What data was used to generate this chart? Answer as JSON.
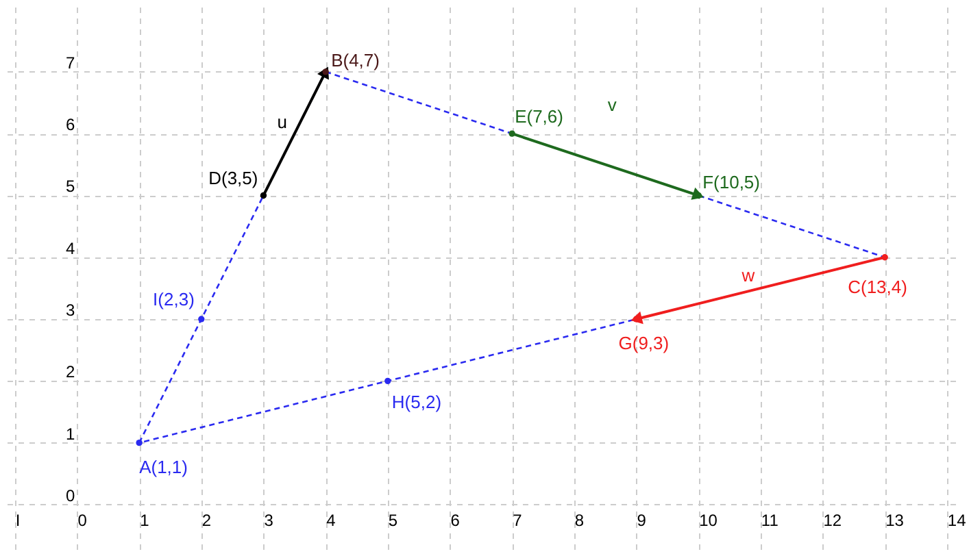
{
  "chart_data": {
    "type": "line",
    "xlim": [
      -1.13,
      14.2
    ],
    "ylim": [
      -0.72,
      8.05
    ],
    "xticks": [
      {
        "value": -1,
        "label": "I"
      },
      0,
      1,
      2,
      3,
      4,
      5,
      6,
      7,
      8,
      9,
      10,
      11,
      12,
      13,
      14
    ],
    "yticks": [
      0,
      1,
      2,
      3,
      4,
      5,
      6,
      7
    ],
    "grid": true,
    "series": [
      {
        "color": "#2a2af0",
        "line_style": "dashed",
        "x": [
          1,
          4
        ],
        "values": [
          1,
          7
        ]
      },
      {
        "color": "#2a2af0",
        "line_style": "dashed",
        "x": [
          4,
          13
        ],
        "values": [
          7,
          4
        ]
      },
      {
        "color": "#2a2af0",
        "line_style": "dashed",
        "x": [
          13,
          1
        ],
        "values": [
          4,
          1
        ]
      },
      {
        "name": "u",
        "color": "#000000",
        "x": [
          3,
          4
        ],
        "values": [
          5,
          7
        ]
      },
      {
        "name": "v",
        "color": "#1e6a1e",
        "x": [
          7,
          10
        ],
        "values": [
          6,
          5
        ]
      },
      {
        "name": "w",
        "color": "#f01e1e",
        "x": [
          13,
          9
        ],
        "values": [
          4,
          3
        ]
      },
      {
        "type": "scatter",
        "x": [
          1,
          4,
          13,
          3,
          7,
          10,
          9,
          5,
          2
        ],
        "values": [
          1,
          7,
          4,
          5,
          6,
          5,
          3,
          2,
          3
        ],
        "colors": [
          "#2a2af0",
          "#4a1818",
          "#f01e1e",
          "#000000",
          "#1e6a1e",
          "#1e6a1e",
          "#f01e1e",
          "#2a2af0",
          "#2a2af0"
        ],
        "value_labels": [
          "A(1,1)",
          "B(4,7)",
          "C(13,4)",
          "D(3,5)",
          "E(7,6)",
          "F(10,5)",
          "G(9,3)",
          "H(5,2)",
          "I(2,3)"
        ]
      }
    ]
  }
}
